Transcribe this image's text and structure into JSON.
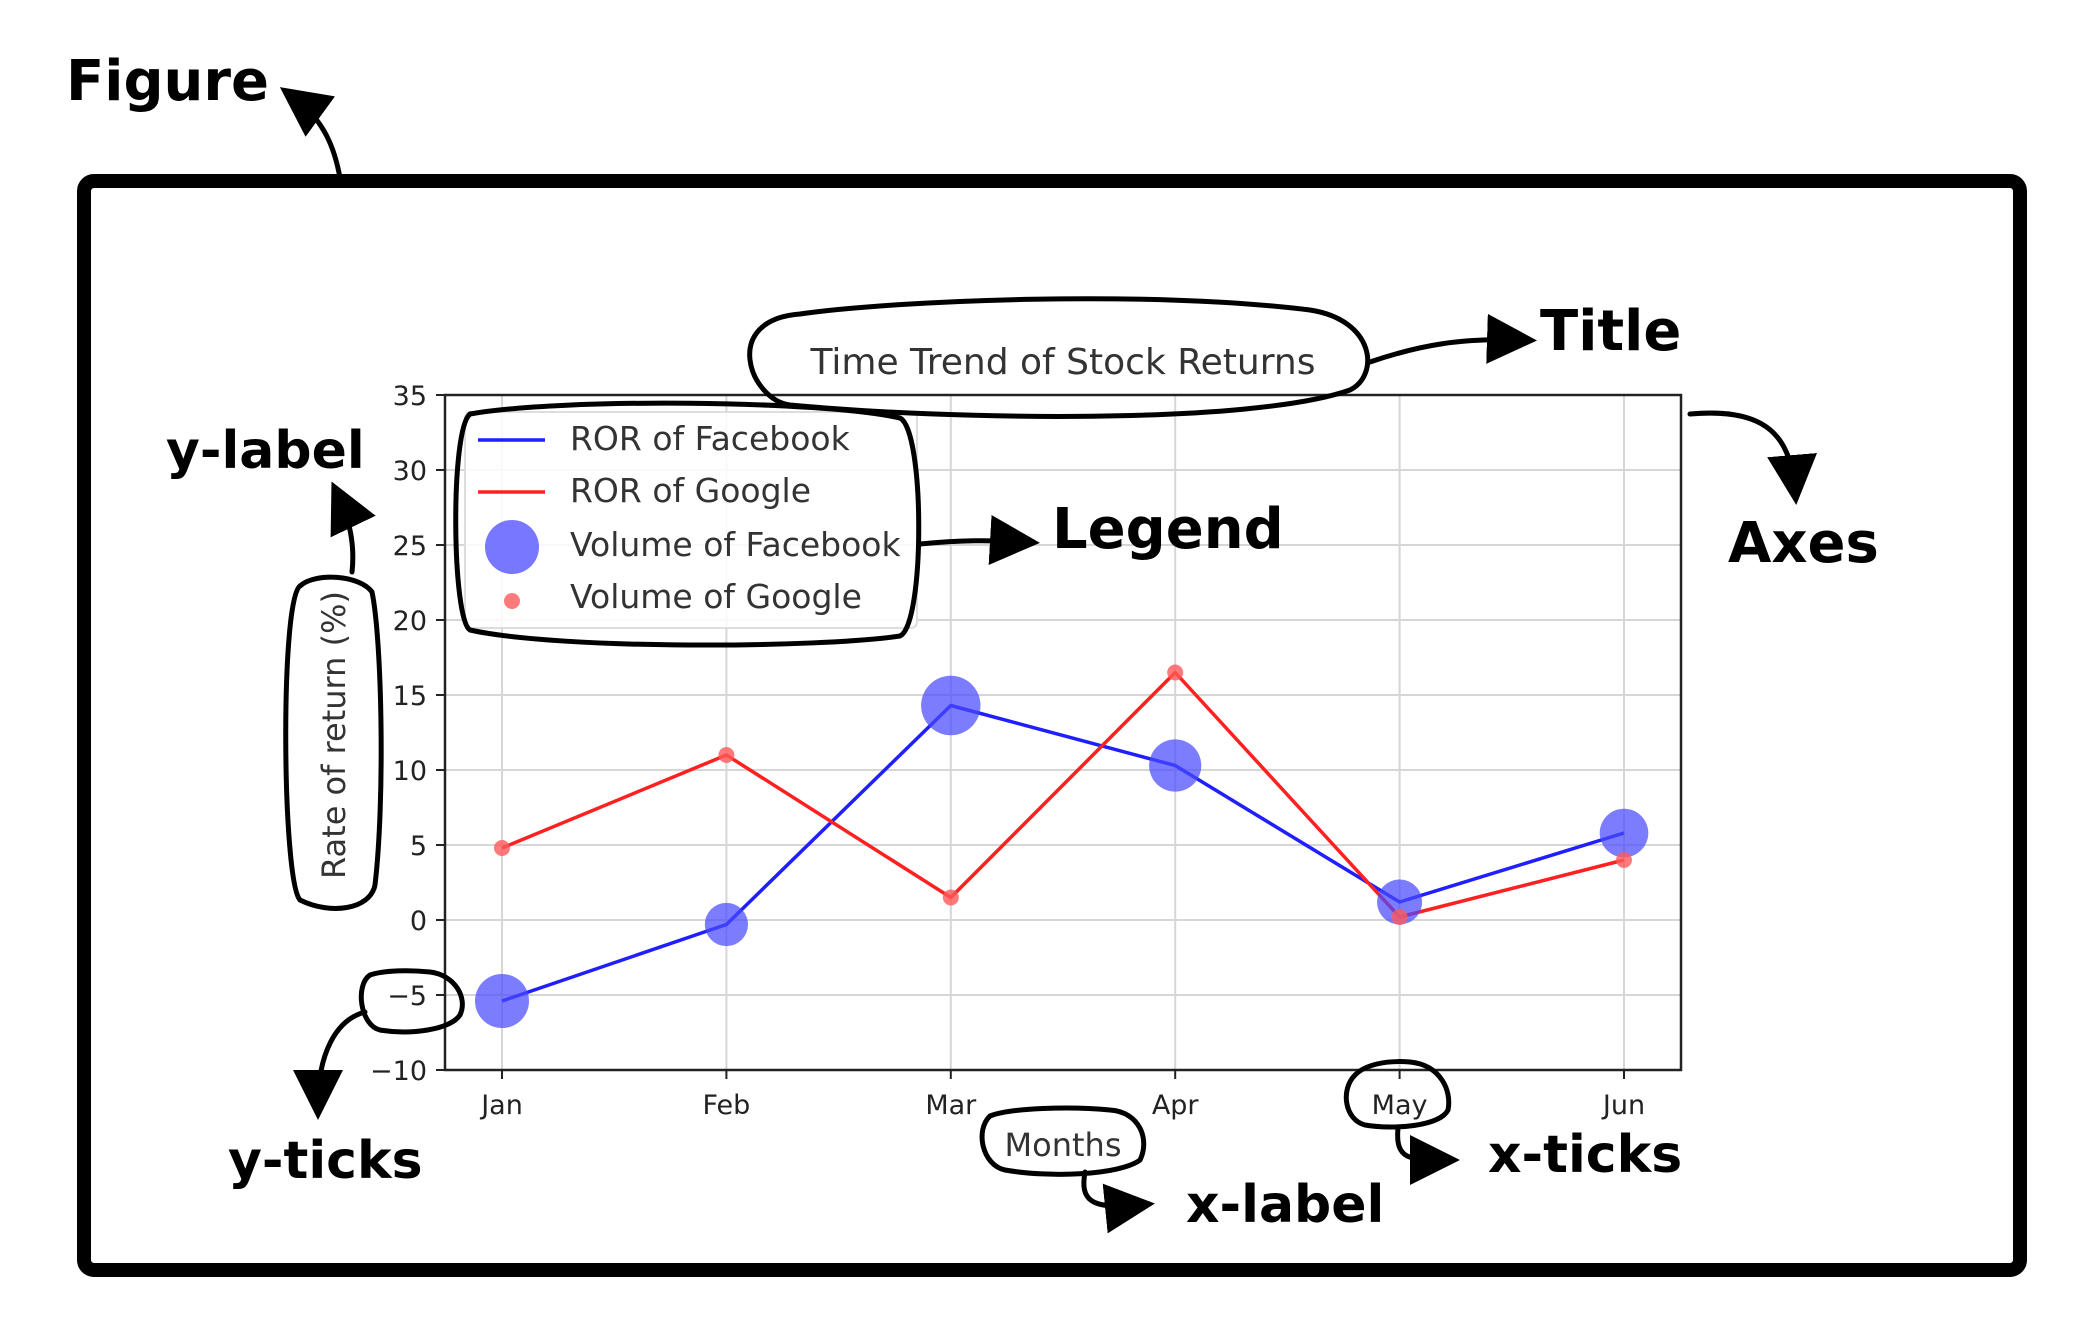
{
  "annotations": {
    "figure": "Figure",
    "title": "Title",
    "axes": "Axes",
    "legend": "Legend",
    "ylabel": "y-label",
    "yticks": "y-ticks",
    "xlabel": "x-label",
    "xticks": "x-ticks"
  },
  "chart_data": {
    "type": "line",
    "title": "Time Trend of Stock Returns",
    "xlabel": "Months",
    "ylabel": "Rate of return (%)",
    "categories": [
      "Jan",
      "Feb",
      "Mar",
      "Apr",
      "May",
      "Jun"
    ],
    "ylim": [
      -10,
      35
    ],
    "yticks": [
      -10,
      -5,
      0,
      5,
      10,
      15,
      20,
      25,
      30,
      35
    ],
    "ytick_labels": [
      "−10",
      "−5",
      "0",
      "5",
      "10",
      "15",
      "20",
      "25",
      "30",
      "35"
    ],
    "grid": true,
    "legend_position": "top-left",
    "legend": [
      {
        "label": "ROR of Facebook",
        "kind": "line",
        "color": "#1f1fff"
      },
      {
        "label": "ROR of Google",
        "kind": "line",
        "color": "#ff2020"
      },
      {
        "label": "Volume of Facebook",
        "kind": "marker",
        "color": "#4a4aff"
      },
      {
        "label": "Volume of Google",
        "kind": "marker",
        "color": "#ff5a5a"
      }
    ],
    "series": [
      {
        "name": "ROR of Facebook",
        "kind": "line",
        "color": "#1f1fff",
        "values": [
          -5.4,
          -0.3,
          14.3,
          10.3,
          1.2,
          5.8
        ]
      },
      {
        "name": "ROR of Google",
        "kind": "line",
        "color": "#ff2020",
        "values": [
          4.8,
          11.0,
          1.5,
          16.5,
          0.2,
          4.0
        ]
      },
      {
        "name": "Volume of Facebook",
        "kind": "scatter",
        "color": "#4a4aff",
        "values": [
          -5.4,
          -0.3,
          14.3,
          10.3,
          1.2,
          5.8
        ],
        "sizes": [
          3.0,
          2.4,
          3.3,
          2.9,
          2.5,
          2.7
        ]
      },
      {
        "name": "Volume of Google",
        "kind": "scatter",
        "color": "#ff5a5a",
        "values": [
          4.8,
          11.0,
          1.5,
          16.5,
          0.2,
          4.0
        ],
        "sizes": [
          1,
          1,
          1,
          1,
          1,
          1
        ]
      }
    ]
  }
}
